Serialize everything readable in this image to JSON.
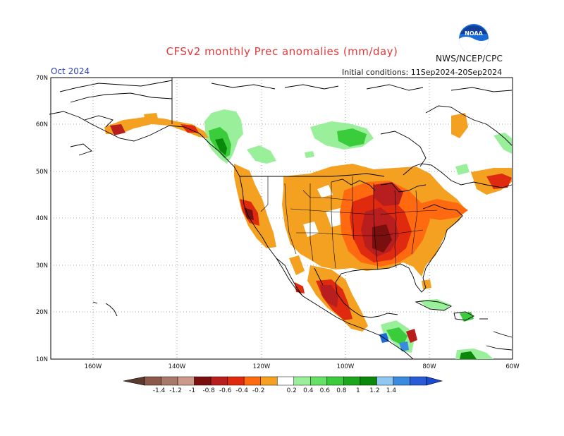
{
  "header": {
    "title": "CFSv2 monthly Prec anomalies (mm/day)",
    "org": "NWS/NCEP/CPC",
    "month": "Oct 2024",
    "initial": "Initial conditions: 11Sep2024-20Sep2024"
  },
  "logo": {
    "text": "NOAA"
  },
  "axes": {
    "lat_labels": [
      "70N",
      "60N",
      "50N",
      "40N",
      "30N",
      "20N",
      "10N"
    ],
    "lon_labels": [
      "160W",
      "140W",
      "120W",
      "100W",
      "80W",
      "60W"
    ]
  },
  "colorbar": {
    "labels": [
      "-1.4",
      "-1.2",
      "-1",
      "-0.8",
      "-0.6",
      "-0.4",
      "-0.2",
      "0.2",
      "0.4",
      "0.6",
      "0.8",
      "1",
      "1.2",
      "1.4"
    ],
    "colors": [
      "#8b5a4a",
      "#a8786a",
      "#cc9a8a",
      "#7a0f0f",
      "#b81e1e",
      "#e02a10",
      "#ff6a10",
      "#f4a020",
      "#ffffff",
      "#9af09a",
      "#66e066",
      "#3acc3a",
      "#1aa81a",
      "#0a880a",
      "#90c8f0",
      "#3a8ae0",
      "#2a5ad8"
    ]
  },
  "legend_colors": {
    "dry_strong": "#7a0f0f",
    "dry_mid": "#e02a10",
    "dry_weak": "#f4a020",
    "wet_weak": "#9af09a",
    "wet_mid": "#3acc3a",
    "wet_strong": "#0a880a"
  }
}
